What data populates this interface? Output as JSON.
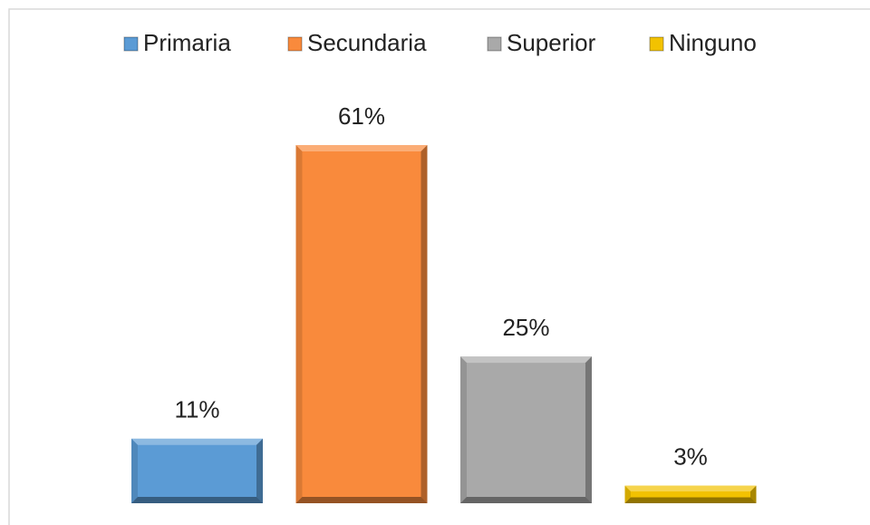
{
  "chart_data": {
    "type": "bar",
    "series": [
      {
        "name": "Primaria",
        "color": "#5b9bd5",
        "values": [
          11
        ],
        "value_labels": [
          "11%"
        ]
      },
      {
        "name": "Secundaria",
        "color": "#f98a3c",
        "values": [
          61
        ],
        "value_labels": [
          "61%"
        ]
      },
      {
        "name": "Superior",
        "color": "#a9a9a9",
        "values": [
          25
        ],
        "value_labels": [
          "25%"
        ]
      },
      {
        "name": "Ninguno",
        "color": "#f2c200",
        "values": [
          3
        ],
        "value_labels": [
          "3%"
        ]
      }
    ],
    "legend": "top"
  }
}
